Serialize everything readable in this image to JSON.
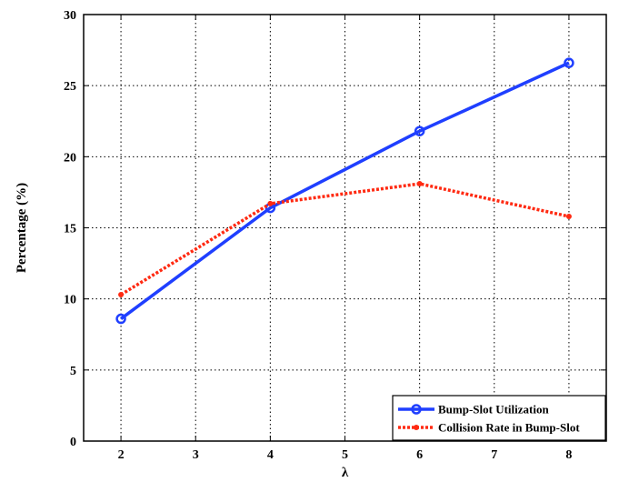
{
  "chart_data": {
    "type": "line",
    "title": "",
    "xlabel": "λ",
    "ylabel": "Percentage (%)",
    "xlim": [
      1.5,
      8.5
    ],
    "ylim": [
      0,
      30
    ],
    "xticks": [
      2,
      3,
      4,
      5,
      6,
      7,
      8
    ],
    "yticks": [
      0,
      5,
      10,
      15,
      20,
      25,
      30
    ],
    "grid": true,
    "legend_position": "bottom-right",
    "x": [
      2,
      4,
      6,
      8
    ],
    "series": [
      {
        "name": "Bump-Slot Utilization",
        "values": [
          8.6,
          16.4,
          21.8,
          26.6
        ],
        "color": "#1f3fff",
        "style": "solid",
        "marker": "circle"
      },
      {
        "name": "Collision Rate in Bump-Slot",
        "values": [
          10.3,
          16.7,
          18.1,
          15.8
        ],
        "color": "#ff2a12",
        "style": "dotted",
        "marker": "circle"
      }
    ]
  }
}
